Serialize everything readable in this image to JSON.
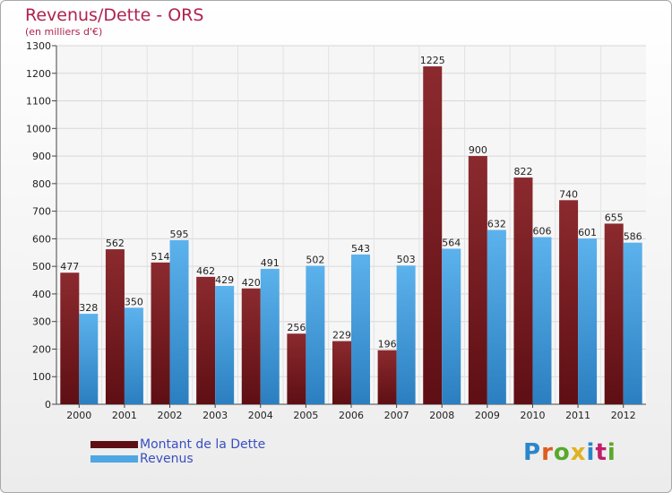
{
  "chart_data": {
    "type": "bar",
    "title": "Revenus/Dette - ORS",
    "subtitle": "(en milliers d'€)",
    "categories": [
      "2000",
      "2001",
      "2002",
      "2003",
      "2004",
      "2005",
      "2006",
      "2007",
      "2008",
      "2009",
      "2010",
      "2011",
      "2012"
    ],
    "series": [
      {
        "name": "Montant de la Dette",
        "color": "#7a1e22",
        "values": [
          477,
          562,
          514,
          462,
          420,
          256,
          229,
          196,
          1225,
          900,
          822,
          740,
          655
        ]
      },
      {
        "name": "Revenus",
        "color": "#4ea6e2",
        "values": [
          328,
          350,
          595,
          429,
          491,
          502,
          543,
          503,
          564,
          632,
          606,
          601,
          586
        ]
      }
    ],
    "ylim": [
      0,
      1300
    ],
    "yticks": [
      0,
      100,
      200,
      300,
      400,
      500,
      600,
      700,
      800,
      900,
      1000,
      1100,
      1200,
      1300
    ],
    "grid": true,
    "legend": "bottom-left"
  },
  "logo": {
    "text": "Proxiti",
    "colors": [
      "#2b86c9",
      "#e05a1f",
      "#58a82e",
      "#e0b21f",
      "#2b86c9",
      "#c0206a",
      "#58a82e"
    ]
  }
}
